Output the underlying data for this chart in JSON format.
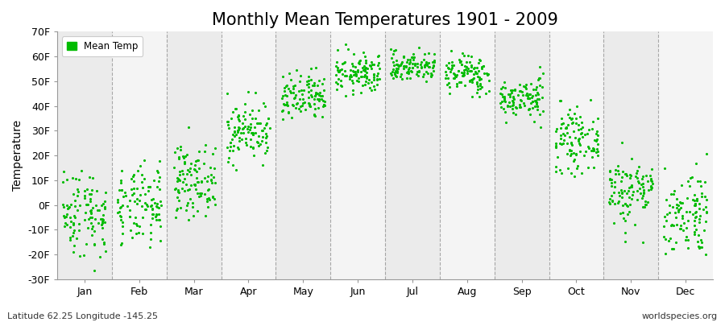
{
  "title": "Monthly Mean Temperatures 1901 - 2009",
  "ylabel": "Temperature",
  "lat_lon_label": "Latitude 62.25 Longitude -145.25",
  "watermark": "worldspecies.org",
  "legend_label": "Mean Temp",
  "years": 109,
  "monthly_means_f": [
    -3,
    -1,
    10,
    30,
    43,
    53,
    56,
    53,
    43,
    26,
    6,
    -3
  ],
  "monthly_std_f": [
    9,
    8,
    7,
    6,
    5,
    4,
    3,
    4,
    4,
    6,
    7,
    9
  ],
  "ylim": [
    -30,
    70
  ],
  "yticks": [
    -30,
    -20,
    -10,
    0,
    10,
    20,
    30,
    40,
    50,
    60,
    70
  ],
  "ytick_labels": [
    "-30F",
    "-20F",
    "-10F",
    "0F",
    "10F",
    "20F",
    "30F",
    "40F",
    "50F",
    "60F",
    "70F"
  ],
  "month_names": [
    "Jan",
    "Feb",
    "Mar",
    "Apr",
    "May",
    "Jun",
    "Jul",
    "Aug",
    "Sep",
    "Oct",
    "Nov",
    "Dec"
  ],
  "dot_color": "#00BB00",
  "dot_size": 5,
  "background_color": "#FFFFFF",
  "band_color_even": "#EBEBEB",
  "band_color_odd": "#F4F4F4",
  "grid_color": "#888888",
  "title_fontsize": 15,
  "axis_label_fontsize": 10,
  "tick_label_fontsize": 9
}
